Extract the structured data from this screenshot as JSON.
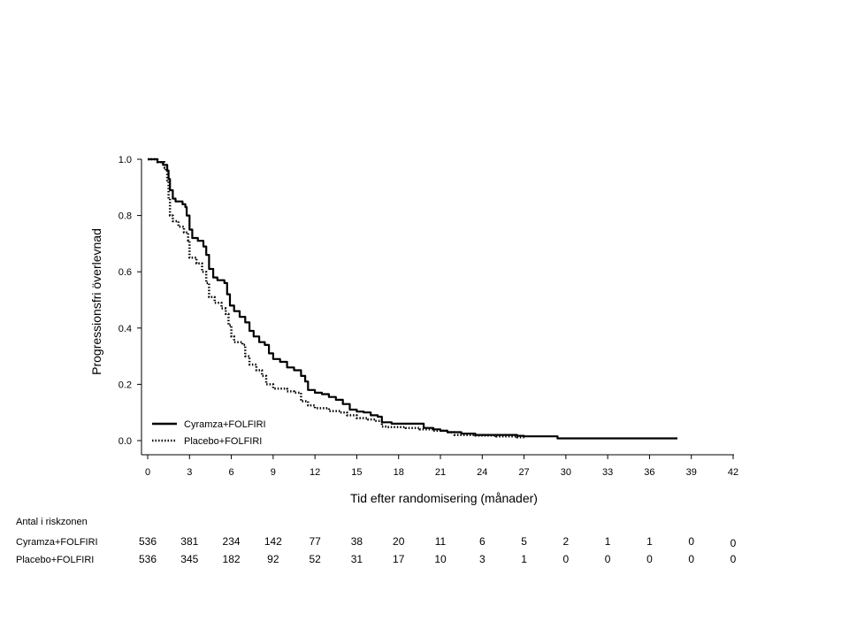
{
  "chart_data": {
    "type": "line",
    "title": "",
    "xlabel": "Tid efter randomisering (månader)",
    "ylabel": "Progressionsfri överlevnad",
    "xlim": [
      0,
      42
    ],
    "ylim": [
      0,
      1
    ],
    "x_ticks": [
      0,
      3,
      6,
      9,
      12,
      15,
      18,
      21,
      24,
      27,
      30,
      33,
      36,
      39,
      42
    ],
    "x_tick_labels": [
      "0",
      "3",
      "6",
      "9",
      "12",
      "15",
      "18",
      "21",
      "24",
      "27",
      "30",
      "33",
      "36",
      "39",
      "42"
    ],
    "y_ticks": [
      0,
      0.2,
      0.4,
      0.6,
      0.8,
      1.0
    ],
    "y_tick_labels": [
      "0.0",
      "0.2",
      "0.4",
      "0.6",
      "0.8",
      "1.0"
    ],
    "grid": false,
    "legend_placement": "bottom-left",
    "series": [
      {
        "name": "Cyramza+FOLFIRI",
        "line_style": "solid",
        "color": "#000000",
        "points": [
          [
            0,
            1.0
          ],
          [
            0.6,
            1.0
          ],
          [
            0.7,
            0.99
          ],
          [
            1.0,
            0.99
          ],
          [
            1.1,
            0.98
          ],
          [
            1.3,
            0.98
          ],
          [
            1.4,
            0.96
          ],
          [
            1.5,
            0.93
          ],
          [
            1.6,
            0.89
          ],
          [
            1.8,
            0.86
          ],
          [
            2.0,
            0.85
          ],
          [
            2.5,
            0.84
          ],
          [
            2.7,
            0.83
          ],
          [
            2.8,
            0.8
          ],
          [
            3.0,
            0.75
          ],
          [
            3.2,
            0.72
          ],
          [
            3.6,
            0.71
          ],
          [
            4.0,
            0.69
          ],
          [
            4.2,
            0.66
          ],
          [
            4.4,
            0.61
          ],
          [
            4.7,
            0.58
          ],
          [
            5.0,
            0.57
          ],
          [
            5.5,
            0.56
          ],
          [
            5.7,
            0.52
          ],
          [
            5.9,
            0.48
          ],
          [
            6.2,
            0.46
          ],
          [
            6.6,
            0.44
          ],
          [
            7.0,
            0.42
          ],
          [
            7.3,
            0.39
          ],
          [
            7.6,
            0.37
          ],
          [
            8.0,
            0.35
          ],
          [
            8.4,
            0.34
          ],
          [
            8.7,
            0.31
          ],
          [
            9.0,
            0.29
          ],
          [
            9.5,
            0.28
          ],
          [
            10.0,
            0.26
          ],
          [
            10.5,
            0.25
          ],
          [
            11.0,
            0.23
          ],
          [
            11.3,
            0.21
          ],
          [
            11.5,
            0.18
          ],
          [
            12.0,
            0.17
          ],
          [
            12.5,
            0.165
          ],
          [
            13.0,
            0.155
          ],
          [
            13.5,
            0.145
          ],
          [
            14.0,
            0.13
          ],
          [
            14.5,
            0.11
          ],
          [
            15.0,
            0.103
          ],
          [
            15.5,
            0.1
          ],
          [
            16.0,
            0.09
          ],
          [
            16.5,
            0.085
          ],
          [
            16.8,
            0.065
          ],
          [
            17.5,
            0.06
          ],
          [
            19.0,
            0.06
          ],
          [
            19.8,
            0.045
          ],
          [
            20.5,
            0.04
          ],
          [
            21.0,
            0.035
          ],
          [
            21.5,
            0.03
          ],
          [
            22.5,
            0.025
          ],
          [
            23.5,
            0.02
          ],
          [
            25.0,
            0.02
          ],
          [
            26.5,
            0.017
          ],
          [
            27.0,
            0.015
          ],
          [
            29.3,
            0.015
          ],
          [
            29.4,
            0.008
          ],
          [
            38.0,
            0.008
          ]
        ]
      },
      {
        "name": "Placebo+FOLFIRI",
        "line_style": "dotted",
        "color": "#000000",
        "points": [
          [
            0,
            1.0
          ],
          [
            0.6,
            1.0
          ],
          [
            0.7,
            0.99
          ],
          [
            1.0,
            0.99
          ],
          [
            1.2,
            0.97
          ],
          [
            1.3,
            0.96
          ],
          [
            1.4,
            0.92
          ],
          [
            1.5,
            0.86
          ],
          [
            1.6,
            0.8
          ],
          [
            1.8,
            0.78
          ],
          [
            2.2,
            0.76
          ],
          [
            2.6,
            0.74
          ],
          [
            2.9,
            0.71
          ],
          [
            3.0,
            0.65
          ],
          [
            3.5,
            0.63
          ],
          [
            3.9,
            0.6
          ],
          [
            4.2,
            0.56
          ],
          [
            4.4,
            0.51
          ],
          [
            4.8,
            0.49
          ],
          [
            5.3,
            0.47
          ],
          [
            5.6,
            0.45
          ],
          [
            5.8,
            0.41
          ],
          [
            6.0,
            0.37
          ],
          [
            6.2,
            0.35
          ],
          [
            6.8,
            0.34
          ],
          [
            7.0,
            0.3
          ],
          [
            7.3,
            0.27
          ],
          [
            7.8,
            0.25
          ],
          [
            8.2,
            0.23
          ],
          [
            8.5,
            0.2
          ],
          [
            9.0,
            0.185
          ],
          [
            10.0,
            0.175
          ],
          [
            10.5,
            0.17
          ],
          [
            11.0,
            0.14
          ],
          [
            11.5,
            0.125
          ],
          [
            12.0,
            0.115
          ],
          [
            13.0,
            0.105
          ],
          [
            13.8,
            0.1
          ],
          [
            14.3,
            0.09
          ],
          [
            15.0,
            0.08
          ],
          [
            15.8,
            0.075
          ],
          [
            16.3,
            0.07
          ],
          [
            16.8,
            0.05
          ],
          [
            17.2,
            0.048
          ],
          [
            18.5,
            0.045
          ],
          [
            19.5,
            0.04
          ],
          [
            20.5,
            0.035
          ],
          [
            21.5,
            0.03
          ],
          [
            22.0,
            0.02
          ],
          [
            23.5,
            0.018
          ],
          [
            25.0,
            0.015
          ],
          [
            26.5,
            0.012
          ],
          [
            27.0,
            0.005
          ]
        ]
      }
    ],
    "legend": [
      {
        "label": "Cyramza+FOLFIRI",
        "line_style": "solid"
      },
      {
        "label": "Placebo+FOLFIRI",
        "line_style": "dotted"
      }
    ],
    "risk_table": {
      "title": "Antal i riskzonen",
      "rows": [
        {
          "label": "Cyramza+FOLFIRI",
          "values": [
            "536",
            "381",
            "234",
            "142",
            "77",
            "38",
            "20",
            "11",
            "6",
            "5",
            "2",
            "1",
            "1",
            "0",
            "0"
          ]
        },
        {
          "label": "Placebo+FOLFIRI",
          "values": [
            "536",
            "345",
            "182",
            "92",
            "52",
            "31",
            "17",
            "10",
            "3",
            "1",
            "0",
            "0",
            "0",
            "0",
            "0"
          ]
        }
      ]
    }
  }
}
